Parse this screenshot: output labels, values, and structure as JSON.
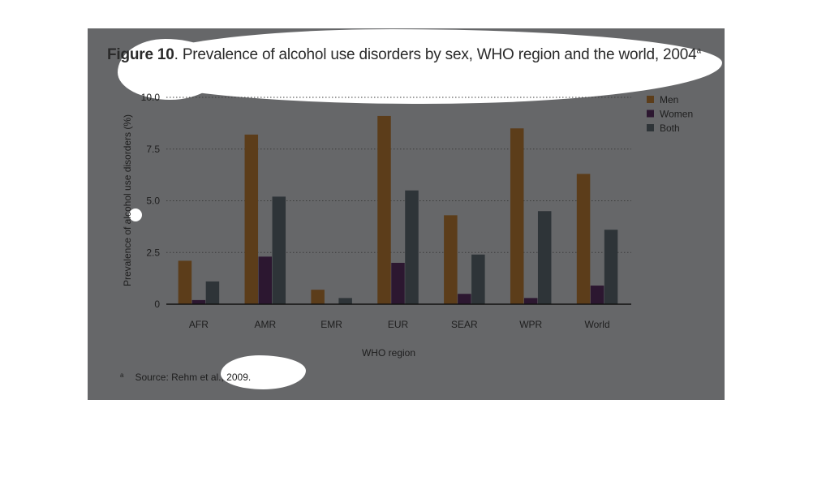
{
  "figure": {
    "label": "Figure 10",
    "caption": ". Prevalence of alcohol use disorders by sex, WHO region and the world, 2004",
    "superscript": "a"
  },
  "footnote": {
    "mark": "a",
    "text": "Source: Rehm et al., 2009."
  },
  "chart_data": {
    "type": "bar",
    "title": "Prevalence of alcohol use disorders by sex, WHO region and the world, 2004",
    "xlabel": "WHO region",
    "ylabel": "Prevalence of alcohol use disorders (%)",
    "ylim": [
      0,
      10
    ],
    "yticks": [
      "0",
      "2.5",
      "5.0",
      "7.5",
      "10.0"
    ],
    "grid": "horizontal dotted",
    "legend_position": "top-right",
    "categories": [
      "AFR",
      "AMR",
      "EMR",
      "EUR",
      "SEAR",
      "WPR",
      "World"
    ],
    "series": [
      {
        "name": "Men",
        "color": "#5c3d1a",
        "values": [
          2.1,
          8.2,
          0.7,
          9.1,
          4.3,
          8.5,
          6.3
        ]
      },
      {
        "name": "Women",
        "color": "#2c1730",
        "values": [
          0.2,
          2.3,
          0.0,
          2.0,
          0.5,
          0.3,
          0.9
        ]
      },
      {
        "name": "Both",
        "color": "#2e3438",
        "values": [
          1.1,
          5.2,
          0.3,
          5.5,
          2.4,
          4.5,
          3.6
        ]
      }
    ]
  }
}
